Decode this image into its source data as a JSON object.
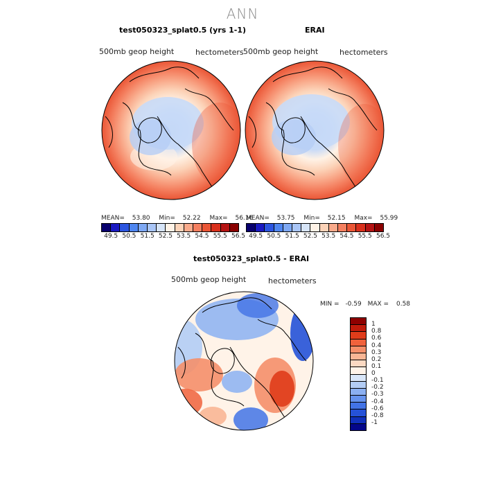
{
  "title": "ANN",
  "panel1": {
    "title": "test050323_splat0.5 (yrs 1-1)",
    "left_label": "500mb  geop  height",
    "right_label": "hectometers",
    "mean_label": "MEAN=",
    "mean": "53.80",
    "min_label": "Min=",
    "min": "52.22",
    "max_label": "Max=",
    "max": "56.16"
  },
  "panel2": {
    "title": "ERAI",
    "left_label": "500mb  geop  height",
    "right_label": "hectometers",
    "mean_label": "MEAN=",
    "mean": "53.75",
    "min_label": "Min=",
    "min": "52.15",
    "max_label": "Max=",
    "max": "55.99"
  },
  "panel3": {
    "title": "test050323_splat0.5 - ERAI",
    "left_label": "500mb  geop  height",
    "right_label": "hectometers",
    "min_label": "MIN =",
    "min": "-0.59",
    "max_label": "MAX =",
    "max": "0.58"
  },
  "colorbar_abs": {
    "colors": [
      "#08006e",
      "#1a1ac2",
      "#2c55e0",
      "#4f86f0",
      "#7ea8f3",
      "#a9c5f6",
      "#d6e4f7",
      "#fff2e6",
      "#fcd3b8",
      "#f9aa8b",
      "#f47f5f",
      "#ea5636",
      "#d9301c",
      "#b51313",
      "#8b0000"
    ],
    "ticks": [
      "49.5",
      "50.5",
      "51.5",
      "52.5",
      "53.5",
      "54.5",
      "55.5",
      "56.5"
    ]
  },
  "colorbar_diff": {
    "colors": [
      "#8e0000",
      "#c01b0b",
      "#e03c1a",
      "#f0623c",
      "#f58f6a",
      "#f9b695",
      "#fbd9c2",
      "#fff3e8",
      "#d9e6f8",
      "#b3cdf5",
      "#8bb0f2",
      "#6693ee",
      "#4273e6",
      "#2552d8",
      "#1030bb",
      "#04068a"
    ],
    "ticks": [
      "1",
      "0.8",
      "0.6",
      "0.4",
      "0.3",
      "0.2",
      "0.1",
      "0",
      "-0.1",
      "-0.2",
      "-0.3",
      "-0.4",
      "-0.6",
      "-0.8",
      "-1"
    ]
  },
  "chart_data": [
    {
      "type": "heatmap",
      "title": "test050323_splat0.5 (yrs 1-1)",
      "variable": "500mb geop height",
      "units": "hectometers",
      "mean": 53.8,
      "min": 52.22,
      "max": 56.16,
      "levels": [
        49.5,
        50.5,
        51.5,
        52.5,
        53.5,
        54.5,
        55.5,
        56.5
      ]
    },
    {
      "type": "heatmap",
      "title": "ERAI",
      "variable": "500mb geop height",
      "units": "hectometers",
      "mean": 53.75,
      "min": 52.15,
      "max": 55.99,
      "levels": [
        49.5,
        50.5,
        51.5,
        52.5,
        53.5,
        54.5,
        55.5,
        56.5
      ]
    },
    {
      "type": "heatmap",
      "title": "test050323_splat0.5 - ERAI",
      "variable": "500mb geop height",
      "units": "hectometers",
      "min": -0.59,
      "max": 0.58,
      "levels": [
        -1,
        -0.8,
        -0.6,
        -0.4,
        -0.3,
        -0.2,
        -0.1,
        0,
        0.1,
        0.2,
        0.3,
        0.4,
        0.6,
        0.8,
        1
      ]
    }
  ]
}
